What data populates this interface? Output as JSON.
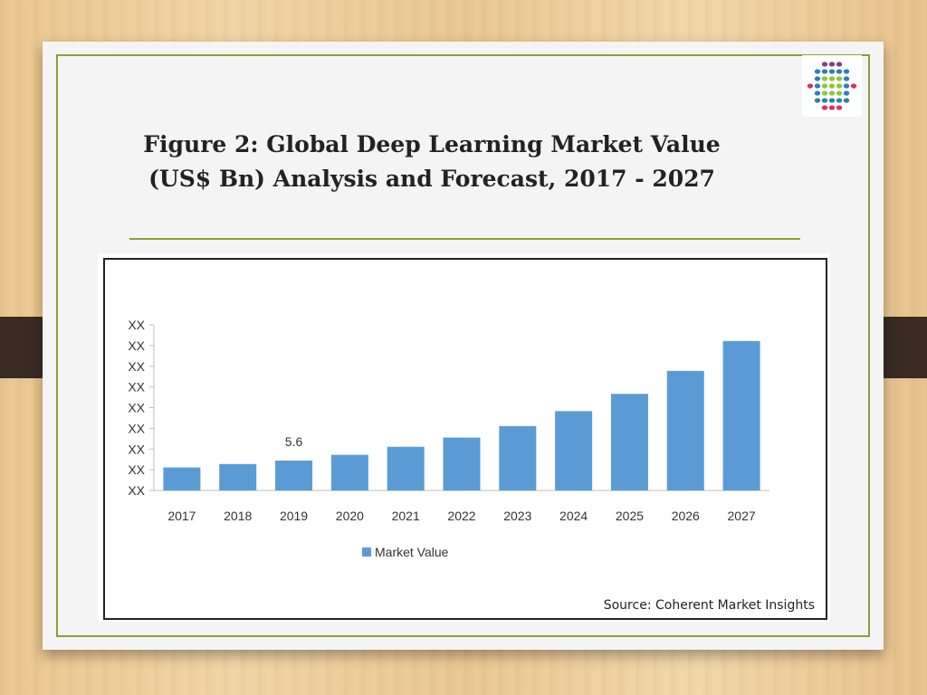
{
  "slide": {
    "title_line1": "Figure 2: Global Deep Learning Market Value",
    "title_line2": "(US$ Bn) Analysis and Forecast, 2017 - 2027",
    "source": "Source: Coherent Market Insights"
  },
  "logo": {
    "icon": "dotted-sphere-logo-icon",
    "colors": [
      "#7b3f8c",
      "#2d7fb8",
      "#8cc63f",
      "#d6336c"
    ]
  },
  "colors": {
    "bar": "#5b9bd5",
    "frame": "#8aa033"
  },
  "chart_data": {
    "type": "bar",
    "categories": [
      "2017",
      "2018",
      "2019",
      "2020",
      "2021",
      "2022",
      "2023",
      "2024",
      "2025",
      "2026",
      "2027"
    ],
    "series": [
      {
        "name": "Market Value",
        "values": [
          5.0,
          5.3,
          5.6,
          6.1,
          6.8,
          7.6,
          8.6,
          9.9,
          11.4,
          13.4,
          16.0
        ]
      }
    ],
    "data_labels": [
      {
        "category": "2019",
        "text": "5.6"
      }
    ],
    "y_tick_labels": [
      "XX",
      "XX",
      "XX",
      "XX",
      "XX",
      "XX",
      "XX",
      "XX",
      "XX"
    ],
    "ylim": [
      3.0,
      17.4
    ],
    "legend": "bottom-center",
    "grid": false
  }
}
